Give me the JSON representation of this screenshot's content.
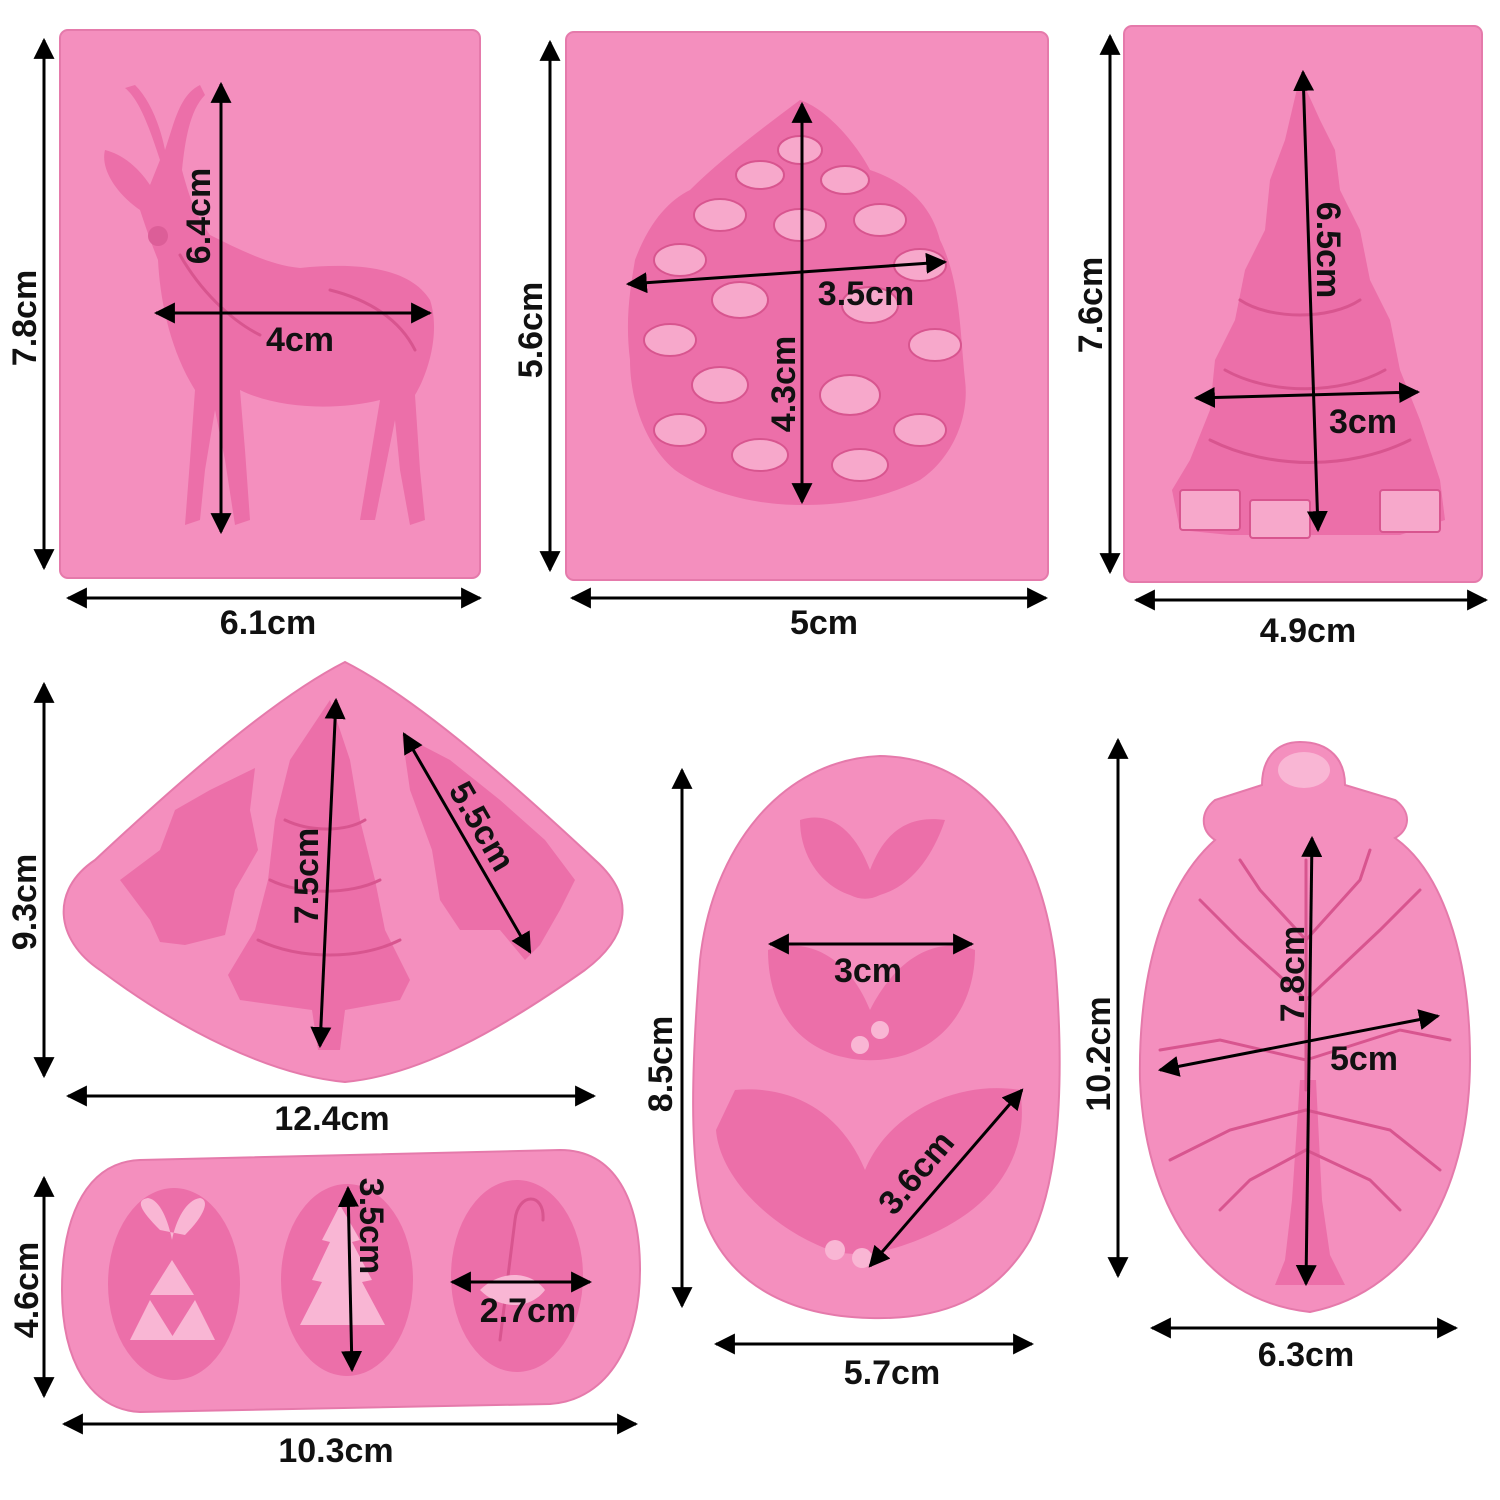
{
  "colors": {
    "mold_pink": "#f48fbe",
    "cavity_pink": "#ec6fa9",
    "arrow": "#000000",
    "background": "#ffffff"
  },
  "molds": [
    {
      "name": "deer",
      "labels": {
        "height": "7.8cm",
        "width": "6.1cm",
        "inner_height": "6.4cm",
        "inner_width": "4cm"
      }
    },
    {
      "name": "pinecone",
      "labels": {
        "height": "5.6cm",
        "width": "5cm",
        "inner_width": "3.5cm",
        "inner_height": "4.3cm"
      }
    },
    {
      "name": "christmas-tree",
      "labels": {
        "height": "7.6cm",
        "width": "4.9cm",
        "inner_height": "6.5cm",
        "inner_width": "3cm"
      }
    },
    {
      "name": "three-trees",
      "labels": {
        "height": "9.3cm",
        "width": "12.4cm",
        "inner_height": "7.5cm",
        "inner_diagonal": "5.5cm"
      }
    },
    {
      "name": "holly-leaves",
      "labels": {
        "height": "8.5cm",
        "width": "5.7cm",
        "inner_width": "3cm",
        "inner_diagonal": "3.6cm"
      }
    },
    {
      "name": "tree-ornament",
      "labels": {
        "height": "10.2cm",
        "width": "6.3cm",
        "inner_height": "7.8cm",
        "inner_width": "5cm"
      }
    },
    {
      "name": "three-ovals",
      "labels": {
        "height": "4.6cm",
        "width": "10.3cm",
        "inner_height": "3.5cm",
        "inner_width": "2.7cm"
      }
    }
  ]
}
